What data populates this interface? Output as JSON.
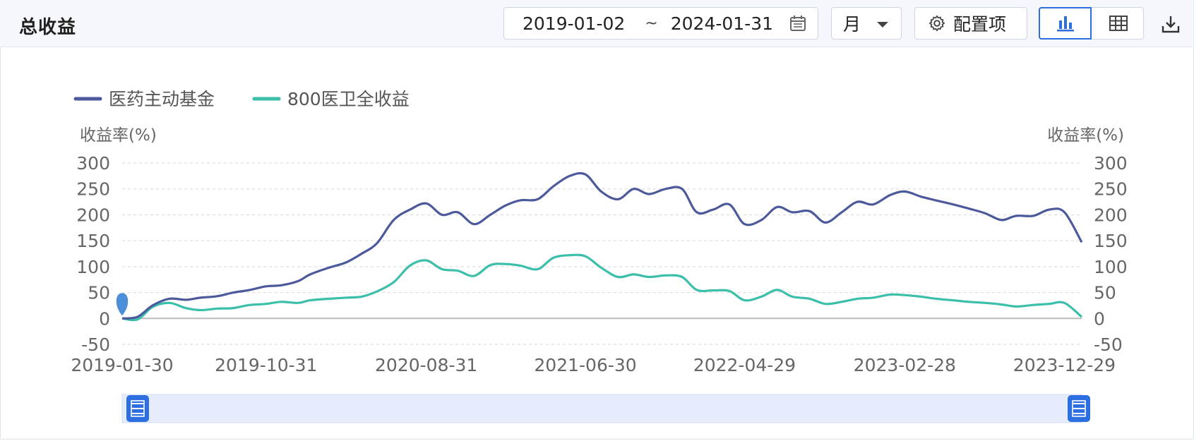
{
  "header": {
    "title": "总收益",
    "date_start": "2019-01-02",
    "date_sep": "~",
    "date_end": "2024-01-31",
    "period": "月",
    "config_label": "配置项",
    "chart_view_icon": "bar-chart-icon",
    "table_view_icon": "table-icon",
    "export_icon": "download-icon"
  },
  "colors": {
    "series1": "#4c5a9c",
    "series2": "#3bbfaa",
    "accent": "#2d6ee0",
    "slider_fill": "#e6ecfb"
  },
  "chart_data": {
    "type": "line",
    "legend": [
      "医药主动基金",
      "800医卫全收益"
    ],
    "legend_position": "top-left",
    "ylabel_left": "收益率(%)",
    "ylabel_right": "收益率(%)",
    "ylim": [
      -50,
      300
    ],
    "yticks": [
      300,
      250,
      200,
      150,
      100,
      50,
      0,
      -50
    ],
    "grid": true,
    "xlim": [
      "2019-01-30",
      "2024-01-31"
    ],
    "xtick_labels": [
      "2019-01-30",
      "2019-10-31",
      "2020-08-31",
      "2021-06-30",
      "2022-04-29",
      "2023-02-28",
      "2023-12-29"
    ],
    "x": [
      "2019-01-30",
      "2019-02-28",
      "2019-03-29",
      "2019-04-30",
      "2019-05-31",
      "2019-06-28",
      "2019-07-31",
      "2019-08-30",
      "2019-09-30",
      "2019-10-31",
      "2019-11-29",
      "2019-12-31",
      "2020-01-23",
      "2020-02-28",
      "2020-03-31",
      "2020-04-30",
      "2020-05-29",
      "2020-06-30",
      "2020-07-31",
      "2020-08-31",
      "2020-09-30",
      "2020-10-30",
      "2020-11-30",
      "2020-12-31",
      "2021-01-29",
      "2021-02-26",
      "2021-03-31",
      "2021-04-30",
      "2021-05-31",
      "2021-06-30",
      "2021-07-30",
      "2021-08-31",
      "2021-09-30",
      "2021-10-29",
      "2021-11-30",
      "2021-12-31",
      "2022-01-28",
      "2022-02-28",
      "2022-03-31",
      "2022-04-29",
      "2022-05-31",
      "2022-06-30",
      "2022-07-29",
      "2022-08-31",
      "2022-09-30",
      "2022-10-31",
      "2022-11-30",
      "2022-12-30",
      "2023-01-31",
      "2023-02-28",
      "2023-03-31",
      "2023-04-28",
      "2023-05-31",
      "2023-06-30",
      "2023-07-31",
      "2023-08-31",
      "2023-09-28",
      "2023-10-31",
      "2023-11-30",
      "2023-12-29",
      "2024-01-31"
    ],
    "series": [
      {
        "name": "医药主动基金",
        "values": [
          0,
          3,
          25,
          38,
          36,
          40,
          43,
          50,
          55,
          62,
          64,
          72,
          85,
          98,
          108,
          125,
          145,
          190,
          210,
          222,
          200,
          205,
          182,
          200,
          218,
          228,
          230,
          255,
          275,
          278,
          245,
          230,
          250,
          240,
          250,
          250,
          205,
          210,
          220,
          182,
          190,
          215,
          205,
          207,
          185,
          205,
          225,
          220,
          238,
          245,
          235,
          228,
          220,
          212,
          203,
          190,
          198,
          198,
          210,
          205,
          147
        ]
      },
      {
        "name": "800医卫全收益",
        "values": [
          0,
          -2,
          22,
          30,
          20,
          16,
          19,
          20,
          26,
          28,
          32,
          30,
          35,
          38,
          40,
          42,
          52,
          70,
          102,
          112,
          95,
          92,
          82,
          103,
          105,
          102,
          95,
          117,
          122,
          120,
          98,
          80,
          85,
          80,
          83,
          80,
          55,
          54,
          53,
          35,
          42,
          55,
          42,
          38,
          28,
          32,
          38,
          40,
          46,
          45,
          42,
          38,
          35,
          32,
          30,
          27,
          23,
          26,
          28,
          30,
          3
        ]
      }
    ]
  },
  "slider": {
    "start": 0,
    "end": 1,
    "handle_icon": "drag-handle-icon"
  }
}
